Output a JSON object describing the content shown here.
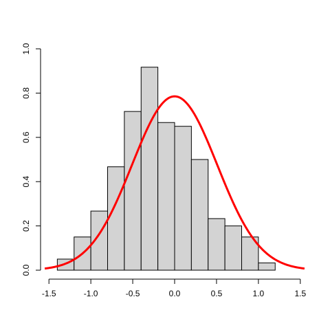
{
  "chart_data": {
    "type": "bar",
    "subtype": "histogram",
    "title": "",
    "xlabel": "",
    "ylabel": "",
    "xlim": [
      -1.6,
      1.6
    ],
    "ylim": [
      0,
      1.0
    ],
    "x_ticks": [
      -1.5,
      -1.0,
      -0.5,
      0.0,
      0.5,
      1.0,
      1.5
    ],
    "x_tick_labels": [
      "-1.5",
      "-1.0",
      "-0.5",
      "0.0",
      "0.5",
      "1.0",
      "1.5"
    ],
    "y_ticks": [
      0.0,
      0.2,
      0.4,
      0.6,
      0.8,
      1.0
    ],
    "y_tick_labels": [
      "0.0",
      "0.2",
      "0.4",
      "0.6",
      "0.8",
      "1.0"
    ],
    "bin_width": 0.2,
    "bins": [
      {
        "start": -1.4,
        "end": -1.2,
        "density": 0.05
      },
      {
        "start": -1.2,
        "end": -1.0,
        "density": 0.15
      },
      {
        "start": -1.0,
        "end": -0.8,
        "density": 0.267
      },
      {
        "start": -0.8,
        "end": -0.6,
        "density": 0.467
      },
      {
        "start": -0.6,
        "end": -0.4,
        "density": 0.717
      },
      {
        "start": -0.4,
        "end": -0.2,
        "density": 0.917
      },
      {
        "start": -0.2,
        "end": 0.0,
        "density": 0.667
      },
      {
        "start": 0.0,
        "end": 0.2,
        "density": 0.65
      },
      {
        "start": 0.2,
        "end": 0.4,
        "density": 0.5
      },
      {
        "start": 0.4,
        "end": 0.6,
        "density": 0.233
      },
      {
        "start": 0.6,
        "end": 0.8,
        "density": 0.2
      },
      {
        "start": 0.8,
        "end": 1.0,
        "density": 0.15
      },
      {
        "start": 1.0,
        "end": 1.2,
        "density": 0.033
      }
    ],
    "bar_fill": "#d3d3d3",
    "bar_stroke": "#000000",
    "density_curve": {
      "type": "line",
      "color": "#ff0000",
      "distribution": "normal",
      "mean": 0.0,
      "sd": 0.508,
      "x_range": [
        -1.55,
        1.55
      ]
    },
    "grid": false,
    "legend": "none"
  }
}
